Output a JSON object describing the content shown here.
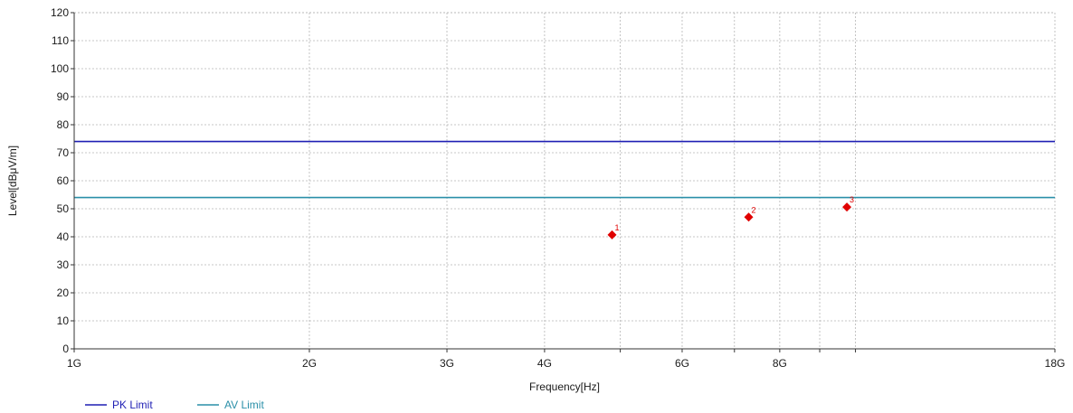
{
  "chart_data": {
    "type": "scatter",
    "xlabel": "Frequency[Hz]",
    "ylabel": "Level[dBμV/m]",
    "x_scale": "log",
    "xlim": [
      1,
      18
    ],
    "ylim": [
      0,
      120
    ],
    "yticks": [
      0,
      10,
      20,
      30,
      40,
      50,
      60,
      70,
      80,
      90,
      100,
      110,
      120
    ],
    "xticks": [
      {
        "value": 1,
        "label": "1G"
      },
      {
        "value": 2,
        "label": "2G"
      },
      {
        "value": 3,
        "label": "3G"
      },
      {
        "value": 4,
        "label": "4G"
      },
      {
        "value": 5,
        "label": ""
      },
      {
        "value": 6,
        "label": "6G"
      },
      {
        "value": 7,
        "label": ""
      },
      {
        "value": 8,
        "label": "8G"
      },
      {
        "value": 9,
        "label": ""
      },
      {
        "value": 10,
        "label": ""
      },
      {
        "value": 18,
        "label": "18G"
      }
    ],
    "grid": true,
    "limits": [
      {
        "name": "PK Limit",
        "value": 74,
        "color": "#1f1fb4"
      },
      {
        "name": "AV Limit",
        "value": 54,
        "color": "#2a8fa8"
      }
    ],
    "points": [
      {
        "label": "1",
        "x": 4.88,
        "y": 40.7,
        "color": "#e00000"
      },
      {
        "label": "2",
        "x": 7.3,
        "y": 47.0,
        "color": "#e00000"
      },
      {
        "label": "3",
        "x": 9.75,
        "y": 50.6,
        "color": "#e00000"
      }
    ],
    "legend_position": "bottom-left"
  }
}
